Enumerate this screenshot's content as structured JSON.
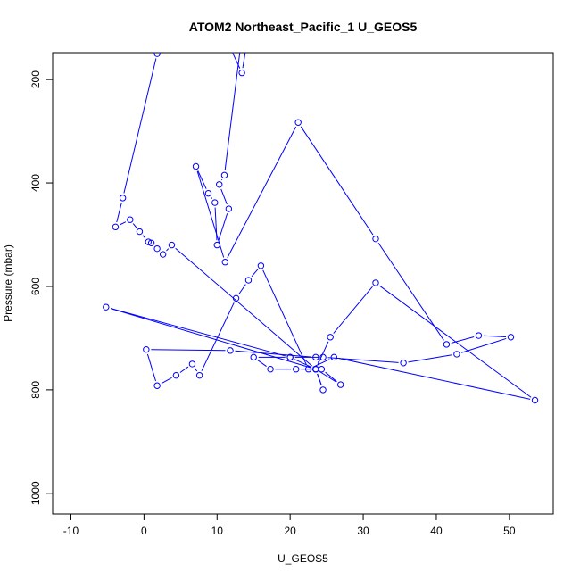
{
  "chart_data": {
    "type": "line",
    "title": "ATOM2 Northeast_Pacific_1 U_GEOS5",
    "xlabel": "U_GEOS5",
    "ylabel": "Pressure (mbar)",
    "xlim": [
      -12.5,
      56
    ],
    "ylim": [
      1040,
      148
    ],
    "y_reversed": true,
    "x_ticks": [
      -10,
      0,
      10,
      20,
      30,
      40,
      50
    ],
    "y_ticks": [
      200,
      400,
      600,
      800,
      1000
    ],
    "x_tick_labels": [
      "-10",
      "0",
      "10",
      "20",
      "30",
      "40",
      "50"
    ],
    "y_tick_labels": [
      "200",
      "400",
      "600",
      "800",
      "1000"
    ],
    "line_color": "#0000ff",
    "grid": false,
    "marker": "open-circle",
    "series": [
      {
        "x": [
          14.3,
          13.4,
          11.2,
          12.0,
          13.4,
          11.0,
          10.3,
          11.6,
          10.0,
          9.7,
          8.8,
          7.1,
          11.1,
          21.1,
          31.7,
          41.4,
          45.8,
          50.2,
          42.8,
          35.5,
          24.5,
          20.0,
          15.0,
          17.3,
          20.8,
          23.5,
          25.5,
          31.7,
          53.5,
          26.0,
          22.5,
          16.0,
          14.3,
          12.6,
          7.6,
          6.6,
          4.4,
          1.8,
          0.3,
          11.8,
          23.5,
          24.3,
          26.9,
          23.5,
          24.5,
          23.5,
          20.0,
          -5.2,
          23.5,
          3.8,
          2.6,
          1.8,
          1.0,
          0.6,
          -0.6,
          -1.9,
          -3.9,
          -2.9,
          1.8,
          5.5,
          6.8,
          7.2,
          9.0
        ],
        "y": [
          110,
          187,
          120,
          130,
          115,
          385,
          403,
          450,
          520,
          438,
          420,
          368,
          553,
          283,
          508,
          712,
          695,
          698,
          731,
          748,
          737,
          737,
          737,
          760,
          760,
          760,
          698,
          593,
          820,
          737,
          760,
          560,
          588,
          623,
          772,
          750,
          772,
          792,
          722,
          724,
          737,
          760,
          790,
          760,
          800,
          760,
          737,
          640,
          760,
          520,
          538,
          527,
          516,
          514,
          494,
          471,
          485,
          429,
          150,
          130,
          120,
          110,
          100
        ]
      }
    ]
  }
}
